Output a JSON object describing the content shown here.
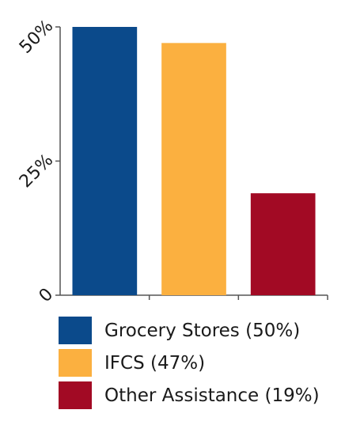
{
  "chart_data": {
    "type": "bar",
    "categories": [
      "Grocery Stores",
      "IFCS",
      "Other Assistance"
    ],
    "values": [
      50,
      47,
      19
    ],
    "colors": [
      "#0b4a8b",
      "#fbb040",
      "#a20a24"
    ],
    "ylim": [
      0,
      50
    ],
    "yticks": [
      {
        "value": 0,
        "label": "0"
      },
      {
        "value": 25,
        "label": "25%"
      },
      {
        "value": 50,
        "label": "50%"
      }
    ],
    "grid": false,
    "legend_position": "bottom"
  },
  "legend": [
    {
      "label": "Grocery Stores (50%)",
      "color": "#0b4a8b"
    },
    {
      "label": "IFCS (47%)",
      "color": "#fbb040"
    },
    {
      "label": "Other Assistance (19%)",
      "color": "#a20a24"
    }
  ]
}
